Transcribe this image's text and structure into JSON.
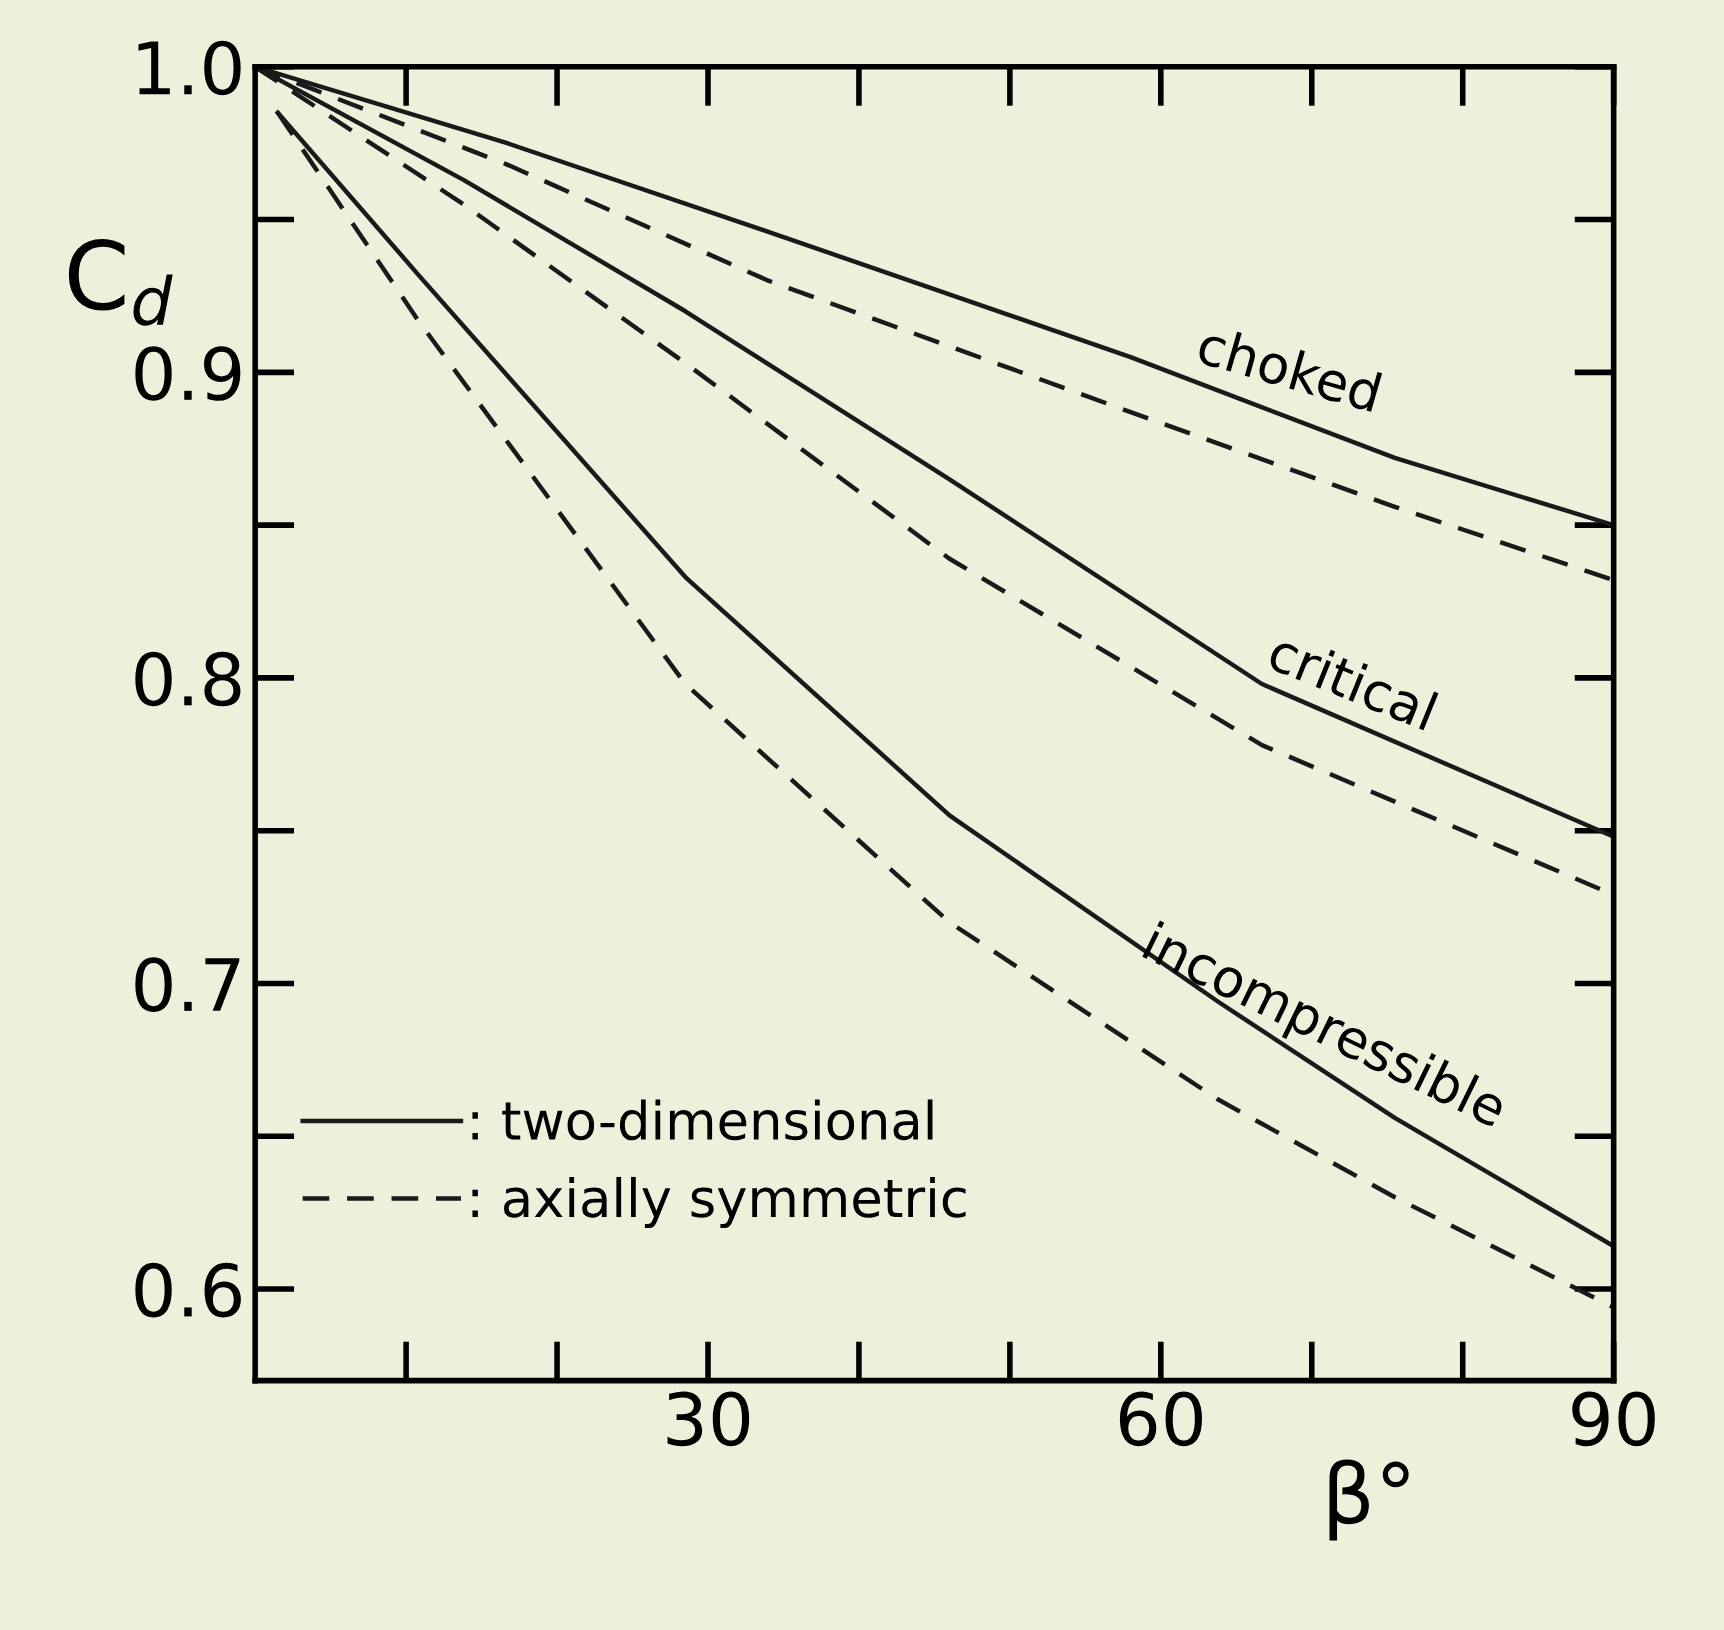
{
  "chart_data": {
    "type": "line",
    "xlabel": "β°",
    "ylabel": "C$_{d}$",
    "xlim": [
      0,
      90
    ],
    "ylim": [
      0.57,
      1.0
    ],
    "xticks": [
      30,
      60,
      90
    ],
    "yticks": [
      0.6,
      0.7,
      0.8,
      0.9,
      {
        "value": 1.0,
        "label": "1.0"
      }
    ],
    "grid": false,
    "legend": "bottom left",
    "marker": "none",
    "series": [
      {
        "name": ": two-dimensional",
        "color": "#1a1a1a",
        "line_style": "solid",
        "x": [
          0,
          16.7,
          34,
          58,
          75.5,
          90
        ],
        "values": [
          1.0,
          0.975,
          0.946,
          0.905,
          0.872,
          0.85
        ]
      },
      {
        "name": ": axially symmetric",
        "color": "#1a1a1a",
        "line_style": "dashed",
        "x": [
          0,
          16.7,
          34,
          58,
          75.5,
          90
        ],
        "values": [
          1.0,
          0.968,
          0.93,
          0.887,
          0.856,
          0.832
        ]
      },
      {
        "color": "#1a1a1a",
        "line_style": "solid",
        "x": [
          0,
          13.8,
          28.5,
          46,
          66.7,
          90
        ],
        "values": [
          1.0,
          0.963,
          0.92,
          0.865,
          0.798,
          0.748
        ]
      },
      {
        "color": "#1a1a1a",
        "line_style": "dashed",
        "x": [
          0,
          13.8,
          28.5,
          46,
          66.7,
          90
        ],
        "values": [
          1.0,
          0.955,
          0.903,
          0.839,
          0.778,
          0.729
        ]
      },
      {
        "color": "#1a1a1a",
        "line_style": "solid",
        "x": [
          1.5,
          10.8,
          28.5,
          46,
          63.8,
          75.5,
          90
        ],
        "values": [
          0.985,
          0.932,
          0.833,
          0.755,
          0.694,
          0.656,
          0.614
        ]
      },
      {
        "color": "#1a1a1a",
        "line_style": "dashed",
        "x": [
          1.5,
          10.8,
          28.5,
          46,
          63.8,
          75.5,
          90
        ],
        "values": [
          0.985,
          0.917,
          0.798,
          0.72,
          0.662,
          0.63,
          0.594
        ]
      }
    ],
    "annotations": [
      {
        "text": "choked",
        "x": 68,
        "y": 0.889
      },
      {
        "text": "critical",
        "x": 72,
        "y": 0.787
      },
      {
        "text": "incompressible",
        "x": 70,
        "y": 0.675
      }
    ]
  }
}
